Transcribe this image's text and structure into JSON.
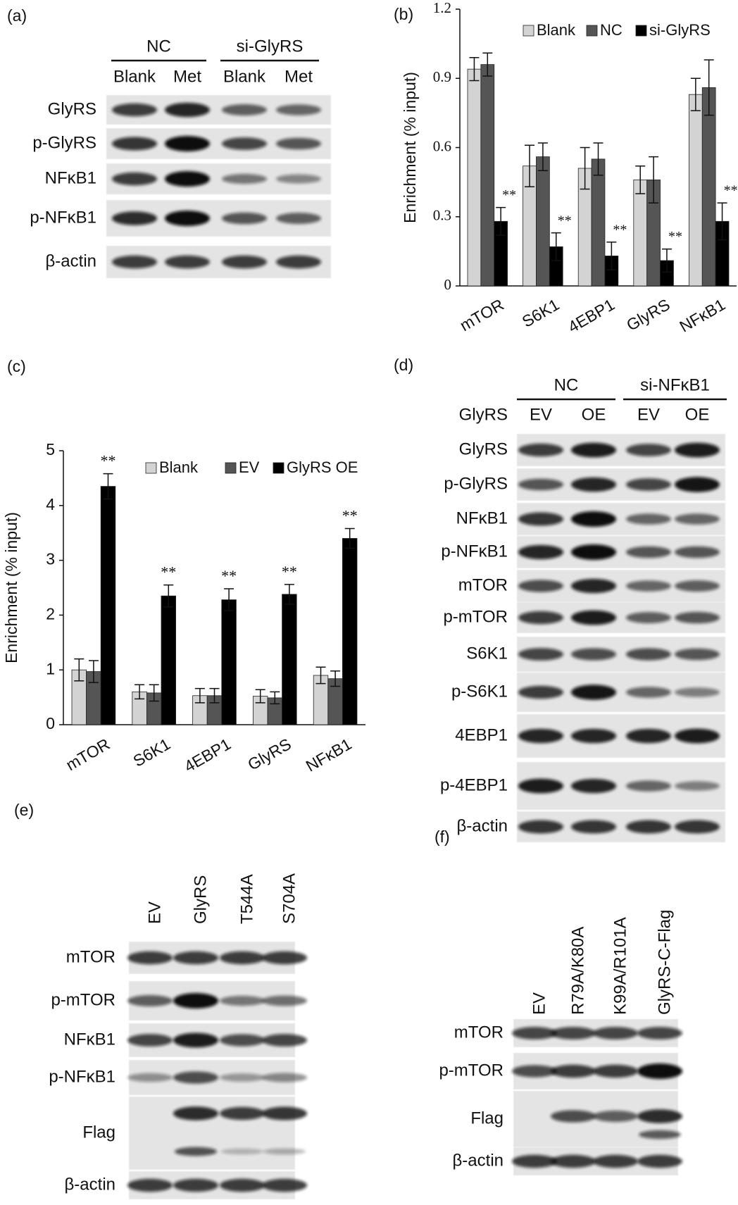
{
  "panel_labels": [
    "(a)",
    "(b)",
    "(c)",
    "(d)",
    "(e)",
    "(f)"
  ],
  "blot_a": {
    "group_labels": [
      "NC",
      "si-GlyRS"
    ],
    "lane_labels": [
      "Blank",
      "Met",
      "Blank",
      "Met"
    ],
    "row_labels": [
      "GlyRS",
      "p-GlyRS",
      "NFκB1",
      "p-NFκB1",
      "β-actin"
    ]
  },
  "blot_d": {
    "group_labels": [
      "NC",
      "si-NFκB1"
    ],
    "lane_title": "GlyRS",
    "lane_labels": [
      "EV",
      "OE",
      "EV",
      "OE"
    ],
    "row_labels": [
      "GlyRS",
      "p-GlyRS",
      "NFκB1",
      "p-NFκB1",
      "mTOR",
      "p-mTOR",
      "S6K1",
      "p-S6K1",
      "4EBP1",
      "p-4EBP1",
      "β-actin"
    ]
  },
  "blot_e": {
    "lane_labels": [
      "EV",
      "GlyRS",
      "T544A",
      "S704A"
    ],
    "row_labels": [
      "mTOR",
      "p-mTOR",
      "NFκB1",
      "p-NFκB1",
      "Flag",
      "β-actin"
    ]
  },
  "blot_f": {
    "lane_labels": [
      "EV",
      "R79A/K80A",
      "K99A/R101A",
      "GlyRS-C-Flag"
    ],
    "row_labels": [
      "mTOR",
      "p-mTOR",
      "Flag",
      "β-actin"
    ]
  },
  "chart_data": [
    {
      "type": "bar",
      "y_label": "Enrichment  (% input)",
      "categories": [
        "mTOR",
        "S6K1",
        "4EBP1",
        "GlyRS",
        "NFκB1"
      ],
      "series": [
        {
          "name": "Blank",
          "color": "#d3d3d3",
          "values": [
            0.94,
            0.52,
            0.51,
            0.46,
            0.83
          ],
          "errors": [
            0.05,
            0.09,
            0.09,
            0.06,
            0.07
          ]
        },
        {
          "name": "NC",
          "color": "#555555",
          "values": [
            0.96,
            0.56,
            0.55,
            0.46,
            0.86
          ],
          "errors": [
            0.05,
            0.06,
            0.07,
            0.1,
            0.12
          ]
        },
        {
          "name": "si-GlyRS",
          "color": "#000000",
          "values": [
            0.28,
            0.17,
            0.13,
            0.11,
            0.28
          ],
          "errors": [
            0.06,
            0.06,
            0.06,
            0.05,
            0.08
          ],
          "annotations": [
            "**",
            "**",
            "**",
            "**",
            "**"
          ]
        }
      ],
      "ylim": [
        0,
        1.2
      ],
      "yticks": [
        0,
        0.3,
        0.6,
        0.9,
        1.2
      ]
    },
    {
      "type": "bar",
      "y_label": "Enrichment  (% input)",
      "categories": [
        "mTOR",
        "S6K1",
        "4EBP1",
        "GlyRS",
        "NFκB1"
      ],
      "series": [
        {
          "name": "Blank",
          "color": "#d3d3d3",
          "values": [
            1.0,
            0.6,
            0.53,
            0.52,
            0.9
          ],
          "errors": [
            0.2,
            0.13,
            0.13,
            0.12,
            0.15
          ]
        },
        {
          "name": "EV",
          "color": "#555555",
          "values": [
            0.97,
            0.58,
            0.53,
            0.49,
            0.84
          ],
          "errors": [
            0.2,
            0.15,
            0.13,
            0.11,
            0.14
          ]
        },
        {
          "name": "GlyRS OE",
          "color": "#000000",
          "values": [
            4.35,
            2.35,
            2.28,
            2.38,
            3.4
          ],
          "errors": [
            0.23,
            0.2,
            0.2,
            0.18,
            0.18
          ],
          "annotations": [
            "**",
            "**",
            "**",
            "**",
            "**"
          ]
        }
      ],
      "ylim": [
        0,
        5
      ],
      "yticks": [
        0,
        1,
        2,
        3,
        4,
        5
      ]
    }
  ]
}
